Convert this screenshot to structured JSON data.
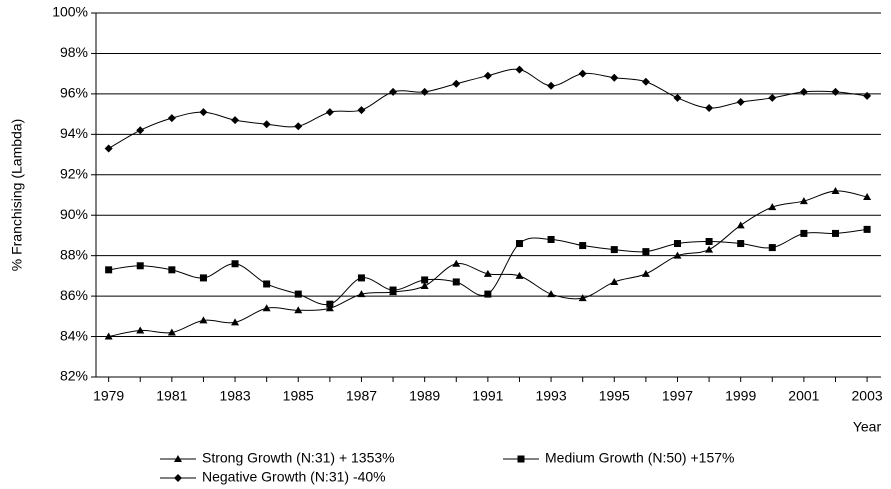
{
  "chart_data": {
    "type": "line",
    "y_label": "% Franchising (Lambda)",
    "x_label": "Year",
    "x": [
      1979,
      1980,
      1981,
      1982,
      1983,
      1984,
      1985,
      1986,
      1987,
      1988,
      1989,
      1990,
      1991,
      1992,
      1993,
      1994,
      1995,
      1996,
      1997,
      1998,
      1999,
      2000,
      2001,
      2002,
      2003
    ],
    "xlim": [
      1978.6,
      2003.44
    ],
    "xticks": [
      1979,
      1981,
      1983,
      1985,
      1987,
      1989,
      1991,
      1993,
      1995,
      1997,
      1999,
      2001,
      2003
    ],
    "ylim": [
      82,
      100
    ],
    "yticks": [
      {
        "value": 82,
        "label": "82%"
      },
      {
        "value": 84,
        "label": "84%"
      },
      {
        "value": 86,
        "label": "86%"
      },
      {
        "value": 88,
        "label": "88%"
      },
      {
        "value": 90,
        "label": "90%"
      },
      {
        "value": 92,
        "label": "92%"
      },
      {
        "value": 94,
        "label": "94%"
      },
      {
        "value": 96,
        "label": "96%"
      },
      {
        "value": 98,
        "label": "98%"
      },
      {
        "value": 100,
        "label": "100%"
      }
    ],
    "grid": true,
    "legend": "bottom",
    "series": [
      {
        "name": "Strong Growth (N:31) + 1353%",
        "color": "#000000",
        "marker": "triangle",
        "values": [
          84.0,
          84.3,
          84.2,
          84.8,
          84.7,
          85.4,
          85.3,
          85.4,
          86.1,
          86.2,
          86.5,
          87.6,
          87.1,
          87.0,
          86.1,
          85.9,
          86.7,
          87.1,
          88.0,
          88.3,
          89.5,
          90.4,
          90.7,
          91.2,
          90.9
        ]
      },
      {
        "name": "Medium Growth (N:50) +157%",
        "color": "#000000",
        "marker": "square",
        "values": [
          87.3,
          87.5,
          87.3,
          86.9,
          87.6,
          86.6,
          86.1,
          85.6,
          86.9,
          86.3,
          86.8,
          86.7,
          86.1,
          88.6,
          88.8,
          88.5,
          88.3,
          88.2,
          88.6,
          88.7,
          88.6,
          88.4,
          89.1,
          89.1,
          89.3
        ]
      },
      {
        "name": "Negative Growth (N:31) -40%",
        "color": "#000000",
        "marker": "diamond",
        "values": [
          93.3,
          94.2,
          94.8,
          95.1,
          94.7,
          94.5,
          94.4,
          95.1,
          95.2,
          96.1,
          96.1,
          96.5,
          96.9,
          97.2,
          96.4,
          97.0,
          96.8,
          96.6,
          95.8,
          95.3,
          95.6,
          95.8,
          96.1,
          96.1,
          95.9
        ]
      }
    ]
  }
}
